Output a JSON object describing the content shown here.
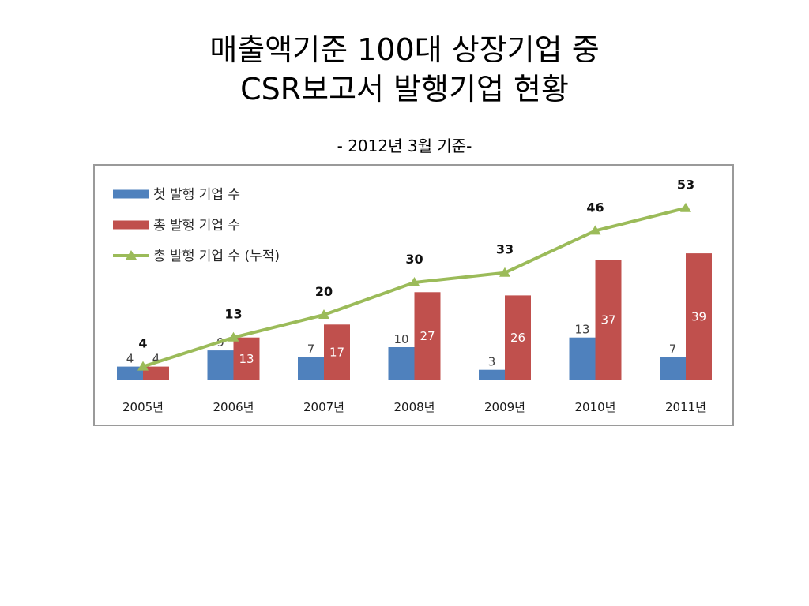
{
  "slide": {
    "title_lines": [
      "매출액기준 100대 상장기업 중",
      "CSR보고서 발행기업 현황"
    ],
    "subtitle": "- 2012년 3월 기준-"
  },
  "chart_data": {
    "type": "bar",
    "categories": [
      "2005년",
      "2006년",
      "2007년",
      "2008년",
      "2009년",
      "2010년",
      "2011년"
    ],
    "series": [
      {
        "name": "첫 발행 기업 수",
        "type": "bar",
        "color": "#4F81BD",
        "values": [
          4,
          9,
          7,
          10,
          3,
          13,
          7
        ]
      },
      {
        "name": "총 발행 기업 수",
        "type": "bar",
        "color": "#C0504D",
        "values": [
          4,
          13,
          17,
          27,
          26,
          37,
          39
        ]
      },
      {
        "name": "총 발행 기업 수 (누적)",
        "type": "line",
        "marker": "triangle",
        "color": "#9BBB59",
        "values": [
          4,
          13,
          20,
          30,
          33,
          46,
          53
        ]
      }
    ],
    "ylim": [
      0,
      60
    ],
    "y_axis_visible": false,
    "grid": false,
    "legend": "top-left",
    "data_labels": true
  }
}
